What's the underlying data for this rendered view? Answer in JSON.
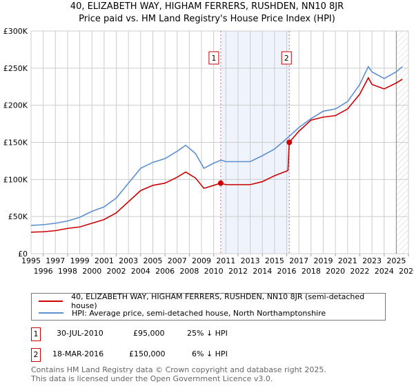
{
  "header": {
    "title": "40, ELIZABETH WAY, HIGHAM FERRERS, RUSHDEN, NN10 8JR",
    "subtitle": "Price paid vs. HM Land Registry's House Price Index (HPI)"
  },
  "chart_data": {
    "type": "line",
    "title": "40, ELIZABETH WAY, HIGHAM FERRERS, RUSHDEN, NN10 8JR",
    "xlim": [
      1995,
      2026
    ],
    "ylim": [
      0,
      300000
    ],
    "xticks": [
      "1995",
      "1996",
      "1997",
      "1998",
      "1999",
      "2000",
      "2001",
      "2002",
      "2003",
      "2004",
      "2005",
      "2006",
      "2007",
      "2008",
      "2009",
      "2010",
      "2011",
      "2012",
      "2013",
      "2014",
      "2015",
      "2016",
      "2017",
      "2018",
      "2019",
      "2020",
      "2021",
      "2022",
      "2023",
      "2024",
      "2025",
      "2026"
    ],
    "yticks": [
      {
        "v": 0,
        "label": "£0"
      },
      {
        "v": 50000,
        "label": "£50K"
      },
      {
        "v": 100000,
        "label": "£100K"
      },
      {
        "v": 150000,
        "label": "£150K"
      },
      {
        "v": 200000,
        "label": "£200K"
      },
      {
        "v": 250000,
        "label": "£250K"
      },
      {
        "v": 300000,
        "label": "£300K"
      }
    ],
    "grid": true,
    "shaded_span": [
      2010.58,
      2016.21
    ],
    "forecast_hatch_from": 2025.0,
    "series": [
      {
        "name": "40, ELIZABETH WAY, HIGHAM FERRERS, RUSHDEN, NN10 8JR (semi-detached house)",
        "color": "#cc0000",
        "x": [
          1995,
          1996,
          1997,
          1998,
          1999,
          2000,
          2001,
          2002,
          2003,
          2004,
          2005,
          2006,
          2007,
          2007.7,
          2008.5,
          2009.2,
          2010,
          2010.58,
          2011,
          2012,
          2013,
          2014,
          2015,
          2016.1,
          2016.21,
          2017,
          2018,
          2019,
          2020,
          2021,
          2022,
          2022.7,
          2023,
          2024,
          2025,
          2025.5
        ],
        "y": [
          29000,
          29500,
          31000,
          34000,
          36000,
          41000,
          46000,
          55000,
          70000,
          85000,
          92000,
          95000,
          103000,
          110000,
          102000,
          88000,
          92000,
          95000,
          93000,
          93000,
          93000,
          97000,
          105000,
          112000,
          150000,
          165000,
          180000,
          184000,
          186000,
          195000,
          215000,
          237000,
          228000,
          222000,
          230000,
          235000
        ]
      },
      {
        "name": "HPI: Average price, semi-detached house, North Northamptonshire",
        "color": "#5b8fd0",
        "x": [
          1995,
          1996,
          1997,
          1998,
          1999,
          2000,
          2001,
          2002,
          2003,
          2004,
          2005,
          2006,
          2007,
          2007.7,
          2008.5,
          2009.2,
          2010,
          2010.6,
          2011,
          2012,
          2013,
          2014,
          2015,
          2016,
          2017,
          2018,
          2019,
          2020,
          2021,
          2022,
          2022.7,
          2023,
          2024,
          2025,
          2025.5
        ],
        "y": [
          38000,
          39000,
          41000,
          44000,
          49000,
          57000,
          63000,
          75000,
          95000,
          115000,
          123000,
          128000,
          138000,
          146000,
          135000,
          115000,
          122000,
          126000,
          124000,
          124000,
          124000,
          132000,
          141000,
          155000,
          170000,
          182000,
          192000,
          195000,
          205000,
          228000,
          252000,
          245000,
          236000,
          245000,
          252000
        ]
      }
    ],
    "sales": [
      {
        "label": "1",
        "x": 2010.58,
        "y": 95000
      },
      {
        "label": "2",
        "x": 2016.21,
        "y": 150000
      }
    ]
  },
  "legend": {
    "property": "40, ELIZABETH WAY, HIGHAM FERRERS, RUSHDEN, NN10 8JR (semi-detached house)",
    "hpi": "HPI: Average price, semi-detached house, North Northamptonshire"
  },
  "transactions": [
    {
      "num": "1",
      "date": "30-JUL-2010",
      "price": "£95,000",
      "delta": "25% ↓ HPI"
    },
    {
      "num": "2",
      "date": "18-MAR-2016",
      "price": "£150,000",
      "delta": "6% ↓ HPI"
    }
  ],
  "footer": {
    "line1": "Contains HM Land Registry data © Crown copyright and database right 2025.",
    "line2": "This data is licensed under the Open Government Licence v3.0."
  }
}
